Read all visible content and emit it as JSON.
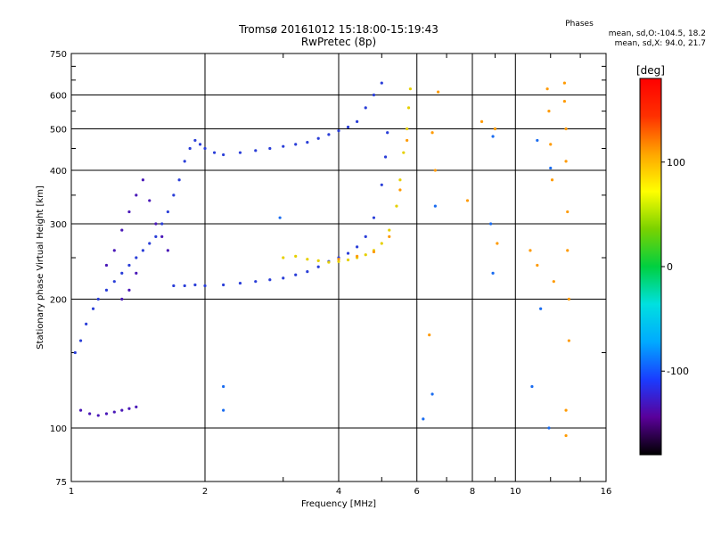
{
  "chart_data": {
    "type": "scatter",
    "title": "Tromsø 20161012 15:18:00-15:19:43",
    "subtitle": "RwPretec (8p)",
    "xlabel": "Frequency [MHz]",
    "ylabel": "Stationary phase Virtual Height [km]",
    "x_scale": "log",
    "y_scale": "log",
    "xlim": [
      1,
      16
    ],
    "ylim": [
      75,
      750
    ],
    "x_ticks": [
      1,
      2,
      4,
      6,
      8,
      10,
      16
    ],
    "y_ticks": [
      75,
      100,
      200,
      300,
      400,
      500,
      600,
      750
    ],
    "grid": true,
    "phases_box": {
      "title": "Phases",
      "line_o": "mean, sd,O:-104.5, 18.2",
      "line_x": "mean, sd,X: 94.0, 21.7"
    },
    "colorbar": {
      "label": "[deg]",
      "ticks": [
        "100",
        "0",
        "-100"
      ],
      "tick_values": [
        100,
        0,
        -100
      ],
      "range": [
        -180,
        180
      ],
      "colors": [
        "#000000",
        "#5a009a",
        "#1a3cff",
        "#00aaff",
        "#00e0e0",
        "#00d040",
        "#7ad200",
        "#ffff00",
        "#ffa500",
        "#ff3000",
        "#ff0000"
      ]
    },
    "series": [
      {
        "color": "#2a3ed8",
        "points": [
          [
            1.02,
            150
          ],
          [
            1.05,
            160
          ],
          [
            1.08,
            175
          ],
          [
            1.12,
            190
          ],
          [
            1.15,
            200
          ],
          [
            1.2,
            210
          ],
          [
            1.25,
            220
          ],
          [
            1.3,
            230
          ],
          [
            1.35,
            240
          ],
          [
            1.4,
            250
          ],
          [
            1.45,
            260
          ],
          [
            1.5,
            270
          ],
          [
            1.55,
            280
          ],
          [
            1.6,
            300
          ],
          [
            1.65,
            320
          ],
          [
            1.7,
            350
          ],
          [
            1.75,
            380
          ],
          [
            1.8,
            420
          ],
          [
            1.85,
            450
          ],
          [
            1.9,
            470
          ],
          [
            1.95,
            460
          ],
          [
            2.0,
            450
          ],
          [
            2.1,
            440
          ],
          [
            2.2,
            435
          ],
          [
            2.4,
            440
          ],
          [
            2.6,
            445
          ],
          [
            2.8,
            450
          ],
          [
            3.0,
            455
          ],
          [
            3.2,
            460
          ],
          [
            3.4,
            465
          ],
          [
            3.6,
            475
          ],
          [
            3.8,
            485
          ],
          [
            4.0,
            495
          ],
          [
            4.2,
            505
          ],
          [
            4.4,
            520
          ],
          [
            4.6,
            560
          ],
          [
            4.8,
            600
          ],
          [
            5.0,
            640
          ],
          [
            1.7,
            215
          ],
          [
            1.8,
            215
          ],
          [
            1.9,
            216
          ],
          [
            2.0,
            215
          ],
          [
            2.2,
            216
          ],
          [
            2.4,
            218
          ],
          [
            2.6,
            220
          ],
          [
            2.8,
            222
          ],
          [
            3.0,
            224
          ],
          [
            3.2,
            228
          ],
          [
            3.4,
            232
          ],
          [
            3.6,
            238
          ],
          [
            3.8,
            245
          ],
          [
            4.0,
            250
          ],
          [
            4.2,
            256
          ],
          [
            4.4,
            265
          ],
          [
            4.6,
            280
          ],
          [
            4.8,
            310
          ],
          [
            5.0,
            370
          ],
          [
            5.1,
            430
          ],
          [
            5.15,
            490
          ]
        ]
      },
      {
        "color": "#4a18b8",
        "points": [
          [
            1.05,
            110
          ],
          [
            1.1,
            108
          ],
          [
            1.15,
            107
          ],
          [
            1.2,
            108
          ],
          [
            1.25,
            109
          ],
          [
            1.3,
            110
          ],
          [
            1.35,
            111
          ],
          [
            1.4,
            112
          ],
          [
            1.2,
            240
          ],
          [
            1.25,
            260
          ],
          [
            1.3,
            290
          ],
          [
            1.35,
            320
          ],
          [
            1.4,
            350
          ],
          [
            1.45,
            380
          ],
          [
            1.5,
            340
          ],
          [
            1.55,
            300
          ],
          [
            1.6,
            280
          ],
          [
            1.65,
            260
          ],
          [
            1.3,
            200
          ],
          [
            1.35,
            210
          ],
          [
            1.4,
            230
          ]
        ]
      },
      {
        "color": "#e6d000",
        "points": [
          [
            3.0,
            250
          ],
          [
            3.2,
            252
          ],
          [
            3.4,
            248
          ],
          [
            3.6,
            246
          ],
          [
            3.8,
            244
          ],
          [
            4.0,
            245
          ],
          [
            4.2,
            247
          ],
          [
            4.4,
            250
          ],
          [
            4.6,
            254
          ],
          [
            4.8,
            260
          ],
          [
            5.0,
            270
          ],
          [
            5.2,
            290
          ],
          [
            5.4,
            330
          ],
          [
            5.5,
            380
          ],
          [
            5.6,
            440
          ],
          [
            5.7,
            500
          ],
          [
            5.75,
            560
          ],
          [
            5.8,
            620
          ]
        ]
      },
      {
        "color": "#ff9a00",
        "points": [
          [
            4.0,
            248
          ],
          [
            4.4,
            252
          ],
          [
            4.8,
            258
          ],
          [
            5.2,
            280
          ],
          [
            5.5,
            360
          ],
          [
            5.7,
            470
          ],
          [
            6.5,
            490
          ],
          [
            6.6,
            400
          ],
          [
            6.4,
            165
          ],
          [
            6.7,
            610
          ],
          [
            7.8,
            340
          ],
          [
            8.4,
            520
          ],
          [
            9.0,
            500
          ],
          [
            9.1,
            270
          ],
          [
            10.8,
            260
          ],
          [
            11.2,
            240
          ],
          [
            11.8,
            620
          ],
          [
            11.9,
            550
          ],
          [
            12.0,
            460
          ],
          [
            12.1,
            380
          ],
          [
            12.2,
            220
          ],
          [
            12.9,
            640
          ],
          [
            12.9,
            580
          ],
          [
            13.0,
            500
          ],
          [
            13.0,
            420
          ],
          [
            13.1,
            320
          ],
          [
            13.1,
            260
          ],
          [
            13.2,
            200
          ],
          [
            13.2,
            160
          ],
          [
            13.0,
            110
          ],
          [
            13.0,
            96
          ]
        ]
      },
      {
        "color": "#1a6cf0",
        "points": [
          [
            6.2,
            105
          ],
          [
            6.5,
            120
          ],
          [
            6.6,
            330
          ],
          [
            8.8,
            300
          ],
          [
            8.9,
            230
          ],
          [
            8.9,
            480
          ],
          [
            10.9,
            125
          ],
          [
            11.2,
            470
          ],
          [
            11.4,
            190
          ],
          [
            11.9,
            100
          ],
          [
            12.0,
            405
          ],
          [
            2.2,
            125
          ],
          [
            2.2,
            110
          ],
          [
            2.95,
            310
          ]
        ]
      }
    ]
  }
}
